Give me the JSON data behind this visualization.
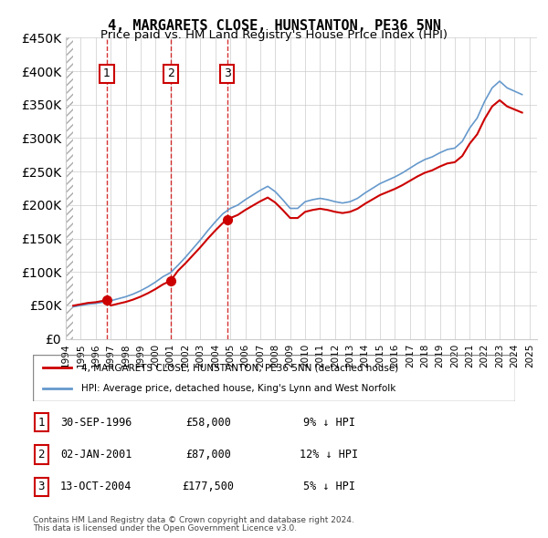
{
  "title": "4, MARGARETS CLOSE, HUNSTANTON, PE36 5NN",
  "subtitle": "Price paid vs. HM Land Registry's House Price Index (HPI)",
  "legend_line1": "4, MARGARETS CLOSE, HUNSTANTON, PE36 5NN (detached house)",
  "legend_line2": "HPI: Average price, detached house, King's Lynn and West Norfolk",
  "footer1": "Contains HM Land Registry data © Crown copyright and database right 2024.",
  "footer2": "This data is licensed under the Open Government Licence v3.0.",
  "purchases": [
    {
      "num": 1,
      "date": "30-SEP-1996",
      "price": 58000,
      "hpi_diff": "9% ↓ HPI",
      "year": 1996.75
    },
    {
      "num": 2,
      "date": "02-JAN-2001",
      "price": 87000,
      "hpi_diff": "12% ↓ HPI",
      "year": 2001.01
    },
    {
      "num": 3,
      "date": "13-OCT-2004",
      "price": 177500,
      "hpi_diff": "5% ↓ HPI",
      "year": 2004.79
    }
  ],
  "price_color": "#cc0000",
  "hpi_color": "#6699cc",
  "hatch_color": "#cccccc",
  "ylim": [
    0,
    450000
  ],
  "xlim_start": 1994,
  "xlim_end": 2025.5
}
